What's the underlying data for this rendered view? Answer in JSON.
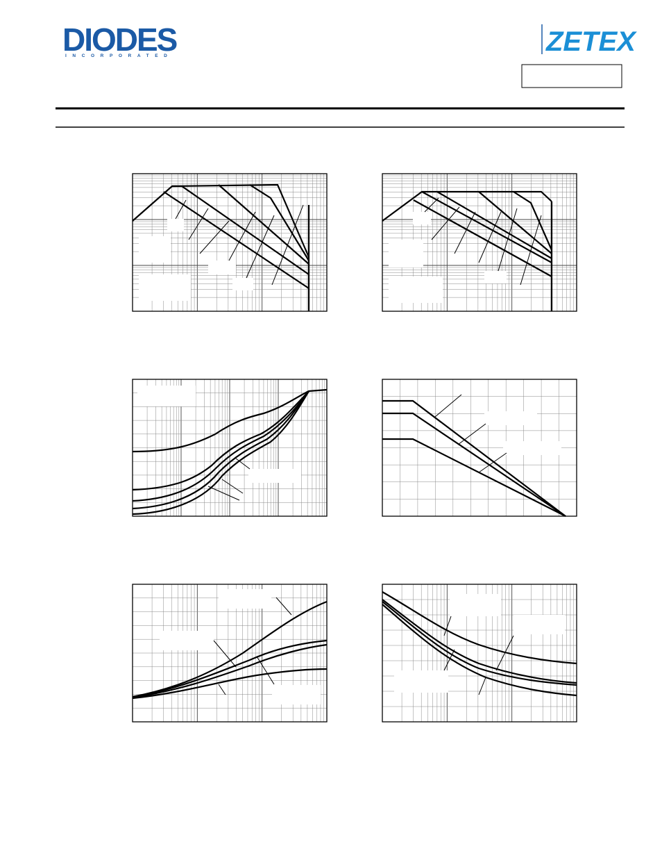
{
  "header": {
    "logo_left": "DIODES",
    "logo_left_sub": "INCORPORATED",
    "logo_right": "ZETEX"
  }
}
